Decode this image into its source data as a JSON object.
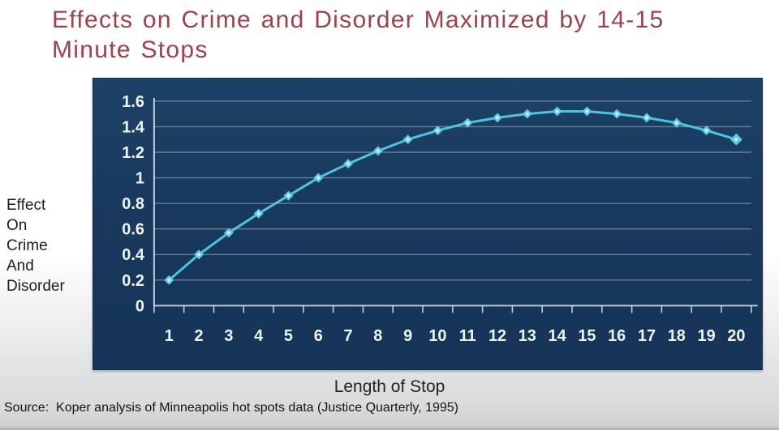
{
  "title": {
    "line1": "Effects on Crime and Disorder Maximized by 14-15",
    "line2": "Minute Stops"
  },
  "y_axis_title_lines": [
    "Effect",
    "On",
    "Crime",
    "And",
    "Disorder"
  ],
  "x_axis_title": "Length of Stop",
  "source_note": "Source:  Koper analysis of Minneapolis hot spots data (Justice Quarterly, 1995)",
  "colors": {
    "title_text": "#9c424b",
    "panel_bg": "#18395d",
    "line": "#4ec4e2",
    "marker_fill": "#63cde8",
    "marker_center": "#d8f3fb",
    "grid": "rgba(208,219,232,0.42)",
    "axis": "rgba(222,230,240,0.85)",
    "tick_label": "#eff4f9"
  },
  "chart_data": {
    "type": "line",
    "title": "Effects on Crime and Disorder Maximized by 14-15 Minute Stops",
    "xlabel": "Length of Stop",
    "ylabel": "Effect On Crime And Disorder",
    "x": [
      1,
      2,
      3,
      4,
      5,
      6,
      7,
      8,
      9,
      10,
      11,
      12,
      13,
      14,
      15,
      16,
      17,
      18,
      19,
      20
    ],
    "values": [
      0.2,
      0.4,
      0.57,
      0.72,
      0.86,
      1.0,
      1.11,
      1.21,
      1.3,
      1.37,
      1.43,
      1.47,
      1.5,
      1.52,
      1.52,
      1.5,
      1.47,
      1.43,
      1.37,
      1.3
    ],
    "ylim": [
      0,
      1.6
    ],
    "y_tick_labels": [
      "1.6",
      "1.4",
      "1.2",
      "1",
      "0.8",
      "0.6",
      "0.4",
      "0.2",
      "0"
    ],
    "grid": true,
    "legend": false,
    "marker": "diamond"
  }
}
